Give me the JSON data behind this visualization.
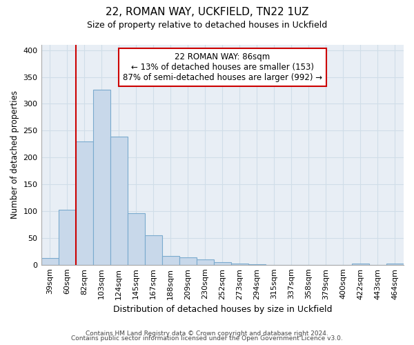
{
  "title": "22, ROMAN WAY, UCKFIELD, TN22 1UZ",
  "subtitle": "Size of property relative to detached houses in Uckfield",
  "xlabel": "Distribution of detached houses by size in Uckfield",
  "ylabel": "Number of detached properties",
  "footnote1": "Contains HM Land Registry data © Crown copyright and database right 2024.",
  "footnote2": "Contains public sector information licensed under the Open Government Licence v3.0.",
  "bar_labels": [
    "39sqm",
    "60sqm",
    "82sqm",
    "103sqm",
    "124sqm",
    "145sqm",
    "167sqm",
    "188sqm",
    "209sqm",
    "230sqm",
    "252sqm",
    "273sqm",
    "294sqm",
    "315sqm",
    "337sqm",
    "358sqm",
    "379sqm",
    "400sqm",
    "422sqm",
    "443sqm",
    "464sqm"
  ],
  "bar_values": [
    13,
    102,
    230,
    327,
    239,
    96,
    55,
    16,
    14,
    10,
    5,
    2,
    1,
    0,
    0,
    0,
    0,
    0,
    2,
    0,
    2
  ],
  "bar_color": "#c8d8ea",
  "bar_edge_color": "#7aaace",
  "ylim": [
    0,
    410
  ],
  "yticks": [
    0,
    50,
    100,
    150,
    200,
    250,
    300,
    350,
    400
  ],
  "property_line_index": 2,
  "property_line_color": "#cc0000",
  "annotation_text": "22 ROMAN WAY: 86sqm\n← 13% of detached houses are smaller (153)\n87% of semi-detached houses are larger (992) →",
  "background_color": "#ffffff",
  "grid_color": "#d0dde8",
  "ax_background": "#e8eef5"
}
